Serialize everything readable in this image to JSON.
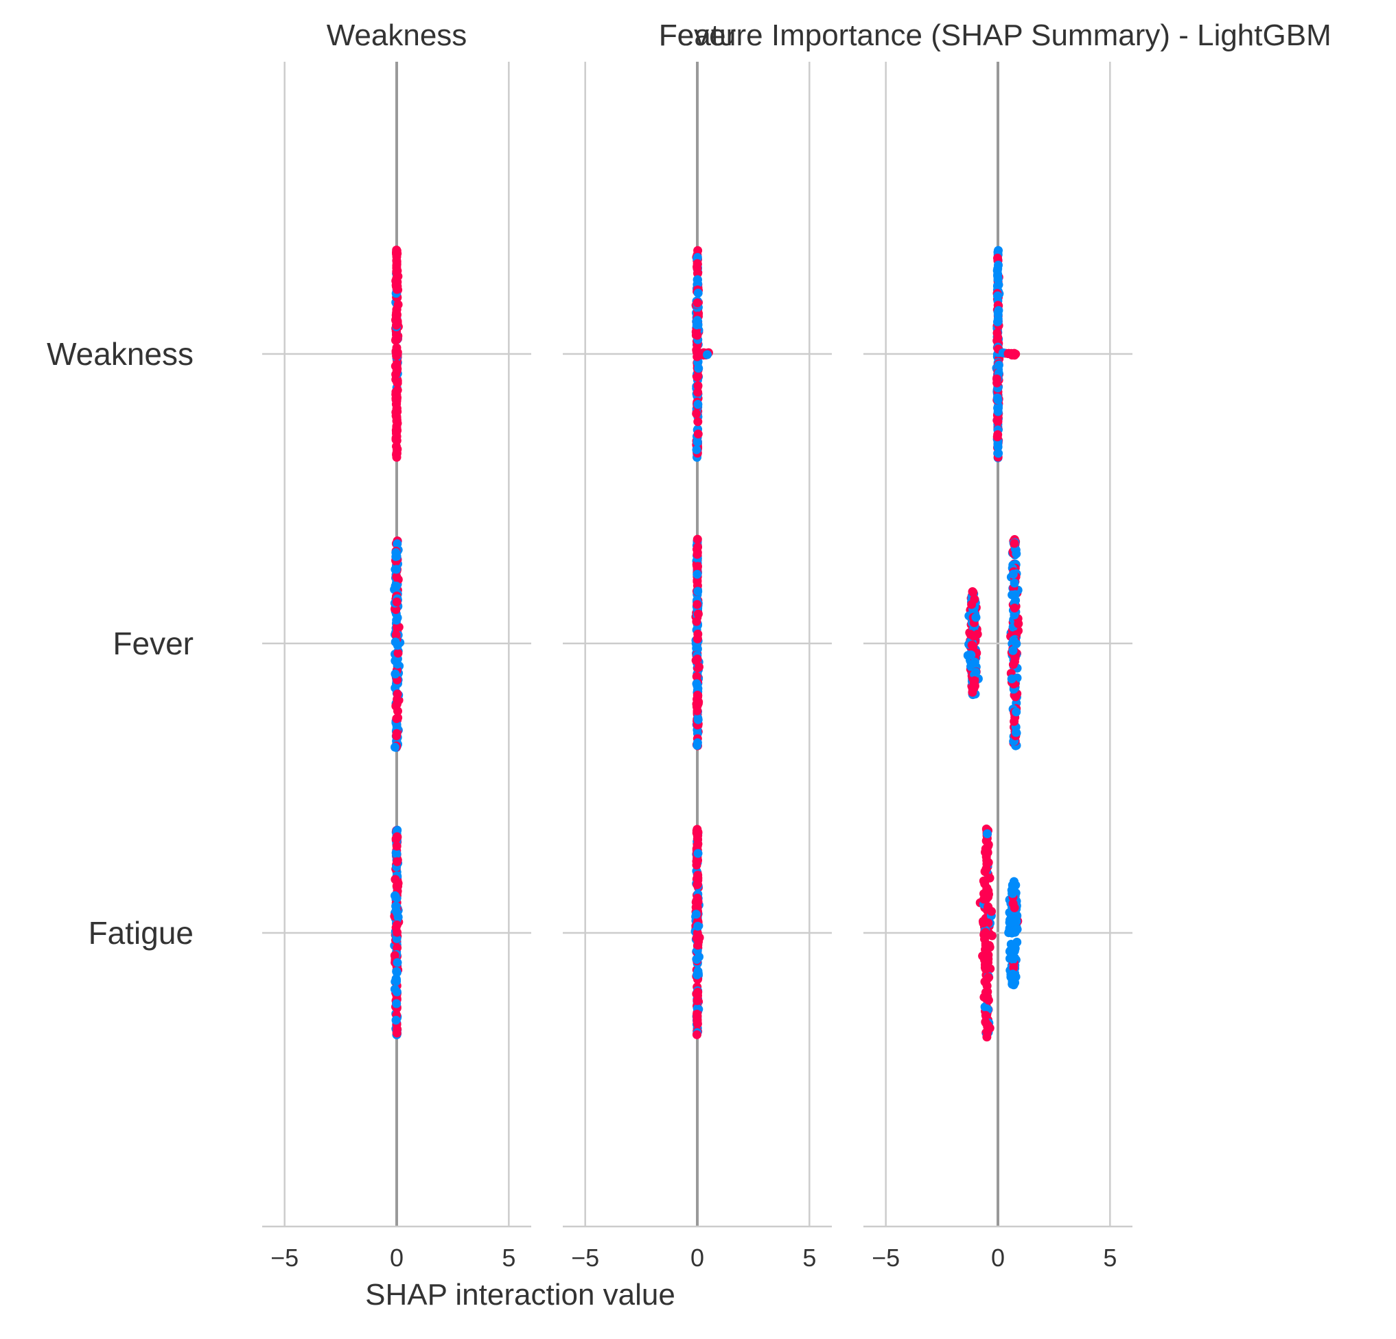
{
  "chart_data": {
    "type": "scatter",
    "title": "Feature Importance (SHAP Summary) - LightGBM",
    "xlabel": "SHAP interaction value",
    "features": [
      "Weakness",
      "Fever",
      "Fatigue"
    ],
    "panels": [
      "Weakness",
      "Fever",
      "Fatigue"
    ],
    "panel_titles_shown": [
      "Weakness",
      "Fever",
      ""
    ],
    "xlim": [
      -6,
      6
    ],
    "xticks": [
      -5,
      0,
      5
    ],
    "xtick_labels": [
      "−5",
      "0",
      "5"
    ],
    "grid": true,
    "colors": {
      "high": "#ff0051",
      "low": "#008bfb",
      "grid": "#cccccc",
      "zero_line": "#999999"
    },
    "series": [
      {
        "panel": "Weakness",
        "rows": [
          {
            "feature": "Weakness",
            "clusters": [
              {
                "center": 0.0,
                "spread": 0.12,
                "height": 0.36,
                "dominant": "high"
              }
            ]
          },
          {
            "feature": "Fever",
            "clusters": [
              {
                "center": 0.0,
                "spread": 0.2,
                "height": 0.36,
                "dominant": "mixed"
              }
            ]
          },
          {
            "feature": "Fatigue",
            "clusters": [
              {
                "center": 0.0,
                "spread": 0.15,
                "height": 0.36,
                "dominant": "mixed"
              }
            ]
          }
        ]
      },
      {
        "panel": "Fever",
        "rows": [
          {
            "feature": "Weakness",
            "clusters": [
              {
                "center": 0.0,
                "spread": 0.12,
                "height": 0.36,
                "dominant": "mixed"
              },
              {
                "center": 0.35,
                "spread": 0.35,
                "height": 0.01,
                "dominant": "high"
              }
            ]
          },
          {
            "feature": "Fever",
            "clusters": [
              {
                "center": 0.0,
                "spread": 0.12,
                "height": 0.36,
                "dominant": "mixed"
              }
            ]
          },
          {
            "feature": "Fatigue",
            "clusters": [
              {
                "center": 0.0,
                "spread": 0.12,
                "height": 0.36,
                "dominant": "mixed"
              }
            ]
          }
        ]
      },
      {
        "panel": "Fatigue",
        "rows": [
          {
            "feature": "Weakness",
            "clusters": [
              {
                "center": 0.0,
                "spread": 0.12,
                "height": 0.36,
                "dominant": "mixed"
              },
              {
                "center": 0.5,
                "spread": 0.6,
                "height": 0.01,
                "dominant": "high"
              }
            ]
          },
          {
            "feature": "Fever",
            "clusters": [
              {
                "center": -1.1,
                "spread": 0.35,
                "height": 0.18,
                "dominant": "mixed"
              },
              {
                "center": 0.75,
                "spread": 0.35,
                "height": 0.36,
                "dominant": "mixed"
              }
            ]
          },
          {
            "feature": "Fatigue",
            "clusters": [
              {
                "center": -0.5,
                "spread": 0.35,
                "height": 0.36,
                "dominant": "high"
              },
              {
                "center": 0.7,
                "spread": 0.4,
                "height": 0.18,
                "dominant": "low"
              }
            ]
          }
        ]
      }
    ]
  }
}
